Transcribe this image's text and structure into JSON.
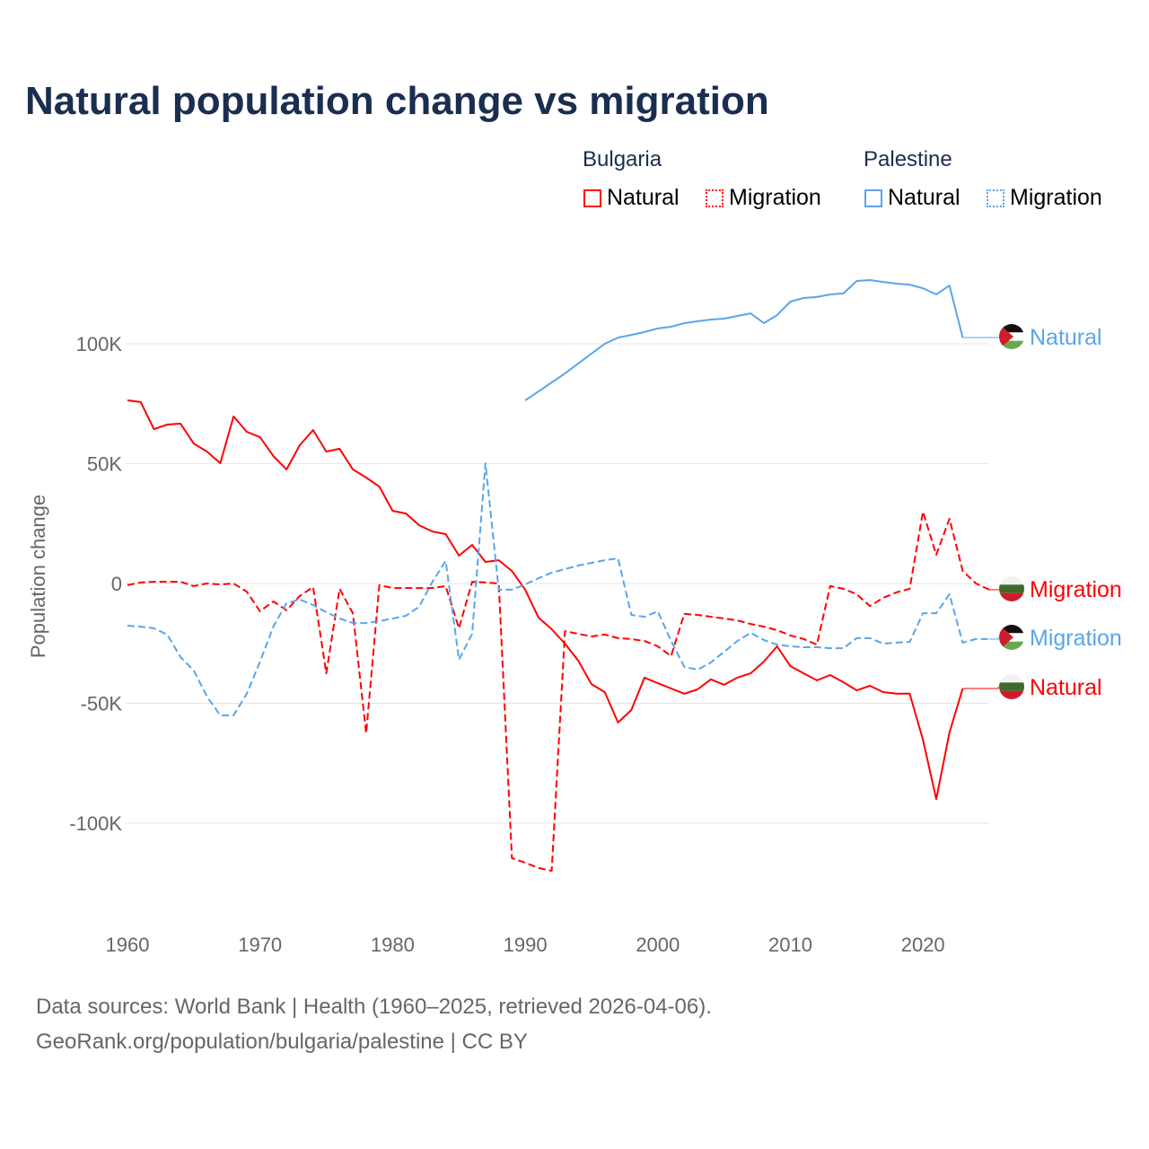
{
  "title": "Natural population change vs migration",
  "legend": {
    "groups": [
      {
        "name": "Bulgaria",
        "items": [
          "Natural",
          "Migration"
        ]
      },
      {
        "name": "Palestine",
        "items": [
          "Natural",
          "Migration"
        ]
      }
    ]
  },
  "colors": {
    "bulgaria": "#ff0000",
    "palestine": "#5aa5ea",
    "title": "#1a2e4f"
  },
  "footer": {
    "line1": "Data sources: World Bank | Health (1960–2025, retrieved 2026-04-06).",
    "line2": "GeoRank.org/population/bulgaria/palestine | CC BY"
  },
  "chart_data": {
    "type": "line",
    "title": "Natural population change vs migration",
    "xlabel": "",
    "ylabel": "Population change",
    "xlim": [
      1960,
      2025
    ],
    "ylim": [
      -130000,
      135000
    ],
    "x_ticks": [
      "1960",
      "1970",
      "1980",
      "1990",
      "2000",
      "2010",
      "2020"
    ],
    "y_ticks": [
      {
        "v": 100000,
        "label": "100K"
      },
      {
        "v": 50000,
        "label": "50K"
      },
      {
        "v": 0,
        "label": "0"
      },
      {
        "v": -50000,
        "label": "-50K"
      },
      {
        "v": -100000,
        "label": "-100K"
      }
    ],
    "grid": true,
    "legend_position": "top-right",
    "series": [
      {
        "name": "Bulgaria Natural",
        "country": "bulgaria",
        "kind": "natural",
        "dash": false,
        "end_label": "Natural",
        "start": 1960,
        "values": [
          76400,
          75700,
          64400,
          66300,
          66700,
          58400,
          55000,
          50200,
          69700,
          63300,
          61000,
          53200,
          47600,
          57700,
          64000,
          55000,
          56200,
          47600,
          44200,
          40400,
          30300,
          29200,
          24300,
          21700,
          20600,
          11600,
          16100,
          9000,
          9700,
          5200,
          -2600,
          -14200,
          -19100,
          -25100,
          -32200,
          -42000,
          -45300,
          -58000,
          -52800,
          -39300,
          -41600,
          -43800,
          -46000,
          -44200,
          -40000,
          -42300,
          -39300,
          -37500,
          -32600,
          -26200,
          -34500,
          -37500,
          -40400,
          -38200,
          -41200,
          -44600,
          -42700,
          -45300,
          -46000,
          -46000,
          -65200,
          -90000,
          -62200,
          -43800
        ]
      },
      {
        "name": "Bulgaria Migration",
        "country": "bulgaria",
        "kind": "migration",
        "dash": true,
        "end_label": "Migration",
        "start": 1960,
        "values": [
          -700,
          400,
          700,
          700,
          700,
          -1100,
          0,
          -400,
          0,
          -3400,
          -11600,
          -7500,
          -11200,
          -5200,
          -1500,
          -37500,
          -2200,
          -12400,
          -62500,
          -700,
          -1900,
          -1900,
          -1900,
          -1900,
          -1100,
          -18700,
          700,
          400,
          0,
          -114600,
          -116500,
          -118700,
          -119900,
          -19900,
          -21000,
          -22100,
          -21300,
          -22800,
          -23200,
          -24000,
          -26200,
          -30300,
          -12700,
          -13100,
          -13900,
          -14600,
          -15400,
          -16900,
          -18000,
          -19500,
          -21700,
          -23200,
          -25500,
          -1100,
          -2200,
          -4500,
          -9400,
          -6000,
          -3700,
          -2200,
          30000,
          12000,
          27000,
          5200,
          0,
          -2600
        ]
      },
      {
        "name": "Palestine Natural",
        "country": "palestine",
        "kind": "natural",
        "dash": false,
        "end_label": "Natural",
        "start": 1990,
        "values": [
          76400,
          80100,
          83900,
          87600,
          91800,
          95900,
          100000,
          102600,
          103700,
          104900,
          106400,
          107100,
          108600,
          109400,
          110100,
          110500,
          111600,
          112700,
          108600,
          112000,
          117600,
          119100,
          119500,
          120600,
          121000,
          126200,
          126600,
          125800,
          125100,
          124700,
          123200,
          120600,
          124300,
          102600
        ]
      },
      {
        "name": "Palestine Migration",
        "country": "palestine",
        "kind": "migration",
        "dash": true,
        "end_label": "Migration",
        "start": 1960,
        "values": [
          -17600,
          -18000,
          -18700,
          -21300,
          -30700,
          -36300,
          -47200,
          -55000,
          -55000,
          -46000,
          -32600,
          -18000,
          -8200,
          -6700,
          -9000,
          -12000,
          -14600,
          -16500,
          -16500,
          -15700,
          -14600,
          -13500,
          -9700,
          700,
          9400,
          -31800,
          -21000,
          50200,
          -2600,
          -2600,
          -400,
          2200,
          4500,
          6000,
          7500,
          8600,
          9700,
          10500,
          -13100,
          -13900,
          -11600,
          -24000,
          -34800,
          -36000,
          -33000,
          -28500,
          -24000,
          -20600,
          -23600,
          -25500,
          -26200,
          -26600,
          -26600,
          -27000,
          -27000,
          -22800,
          -22800,
          -25100,
          -24700,
          -24400,
          -12400,
          -12400,
          -4500,
          -24700,
          -23200,
          -23200
        ]
      }
    ]
  }
}
